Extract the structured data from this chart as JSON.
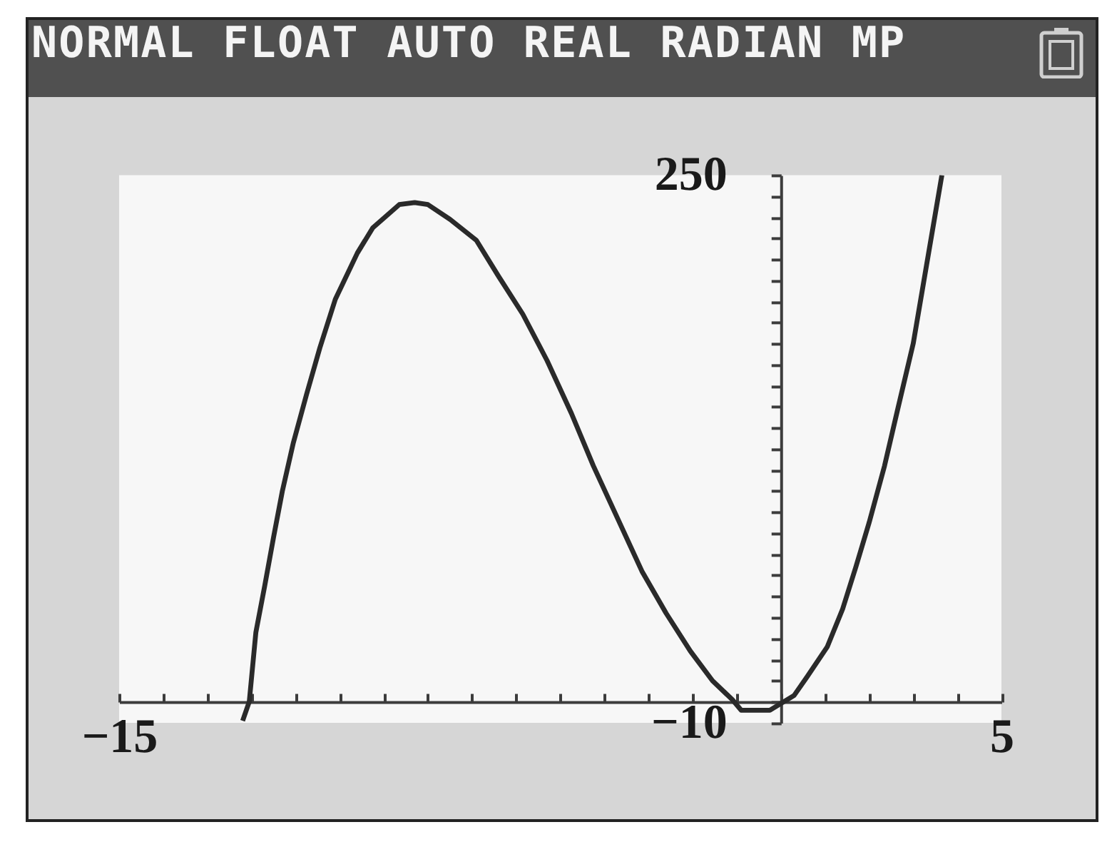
{
  "chart_data": {
    "type": "line",
    "title": "NORMAL FLOAT AUTO REAL RADIAN MP",
    "x": [
      -12.2,
      -12.05,
      -11.9,
      -11.7,
      -11.5,
      -11.3,
      -11.05,
      -10.75,
      -10.45,
      -10.1,
      -9.6,
      -9.25,
      -8.65,
      -8.3,
      -8.0,
      -7.5,
      -6.9,
      -6.4,
      -5.85,
      -5.3,
      -4.75,
      -4.25,
      -3.7,
      -3.15,
      -2.6,
      -2.05,
      -1.55,
      -1.1,
      -0.9,
      -0.25,
      0.3,
      0.6,
      1.05,
      1.4,
      1.7,
      2.0,
      2.35,
      2.65,
      3.0,
      3.3,
      3.65
    ],
    "values": [
      -9,
      0,
      33,
      55,
      78,
      100,
      123,
      146,
      168,
      191,
      213,
      225,
      236,
      237,
      236,
      229,
      219,
      202,
      184,
      162,
      137,
      112,
      87,
      62,
      42,
      24,
      10,
      1,
      -4,
      -4,
      3,
      12,
      26,
      44,
      64,
      85,
      112,
      139,
      170,
      207,
      250
    ],
    "color": "#2a2a2a",
    "line_style": "solid",
    "xlim": [
      -15,
      5
    ],
    "ylim": [
      -10,
      250
    ],
    "xticks": [
      {
        "value": -15,
        "label": "−15"
      },
      {
        "value": -14,
        "label": null
      },
      {
        "value": -13,
        "label": null
      },
      {
        "value": -12,
        "label": null
      },
      {
        "value": -11,
        "label": null
      },
      {
        "value": -10,
        "label": null
      },
      {
        "value": -9,
        "label": null
      },
      {
        "value": -8,
        "label": null
      },
      {
        "value": -7,
        "label": null
      },
      {
        "value": -6,
        "label": null
      },
      {
        "value": -5,
        "label": null
      },
      {
        "value": -4,
        "label": null
      },
      {
        "value": -3,
        "label": null
      },
      {
        "value": -2,
        "label": null
      },
      {
        "value": -1,
        "label": null
      },
      {
        "value": 0,
        "label": null
      },
      {
        "value": 1,
        "label": null
      },
      {
        "value": 2,
        "label": null
      },
      {
        "value": 3,
        "label": null
      },
      {
        "value": 4,
        "label": null
      },
      5
    ],
    "yticks": [
      {
        "value": -10,
        "label": "−10"
      },
      {
        "value": 0,
        "label": null
      },
      {
        "value": 10,
        "label": null
      },
      {
        "value": 20,
        "label": null
      },
      {
        "value": 30,
        "label": null
      },
      {
        "value": 40,
        "label": null
      },
      {
        "value": 50,
        "label": null
      },
      {
        "value": 60,
        "label": null
      },
      {
        "value": 70,
        "label": null
      },
      {
        "value": 80,
        "label": null
      },
      {
        "value": 90,
        "label": null
      },
      {
        "value": 100,
        "label": null
      },
      {
        "value": 110,
        "label": null
      },
      {
        "value": 120,
        "label": null
      },
      {
        "value": 130,
        "label": null
      },
      {
        "value": 140,
        "label": null
      },
      {
        "value": 150,
        "label": null
      },
      {
        "value": 160,
        "label": null
      },
      {
        "value": 170,
        "label": null
      },
      {
        "value": 180,
        "label": null
      },
      {
        "value": 190,
        "label": null
      },
      {
        "value": 200,
        "label": null
      },
      {
        "value": 210,
        "label": null
      },
      {
        "value": 220,
        "label": null
      },
      {
        "value": 230,
        "label": null
      },
      {
        "value": 240,
        "label": null
      },
      250
    ]
  }
}
